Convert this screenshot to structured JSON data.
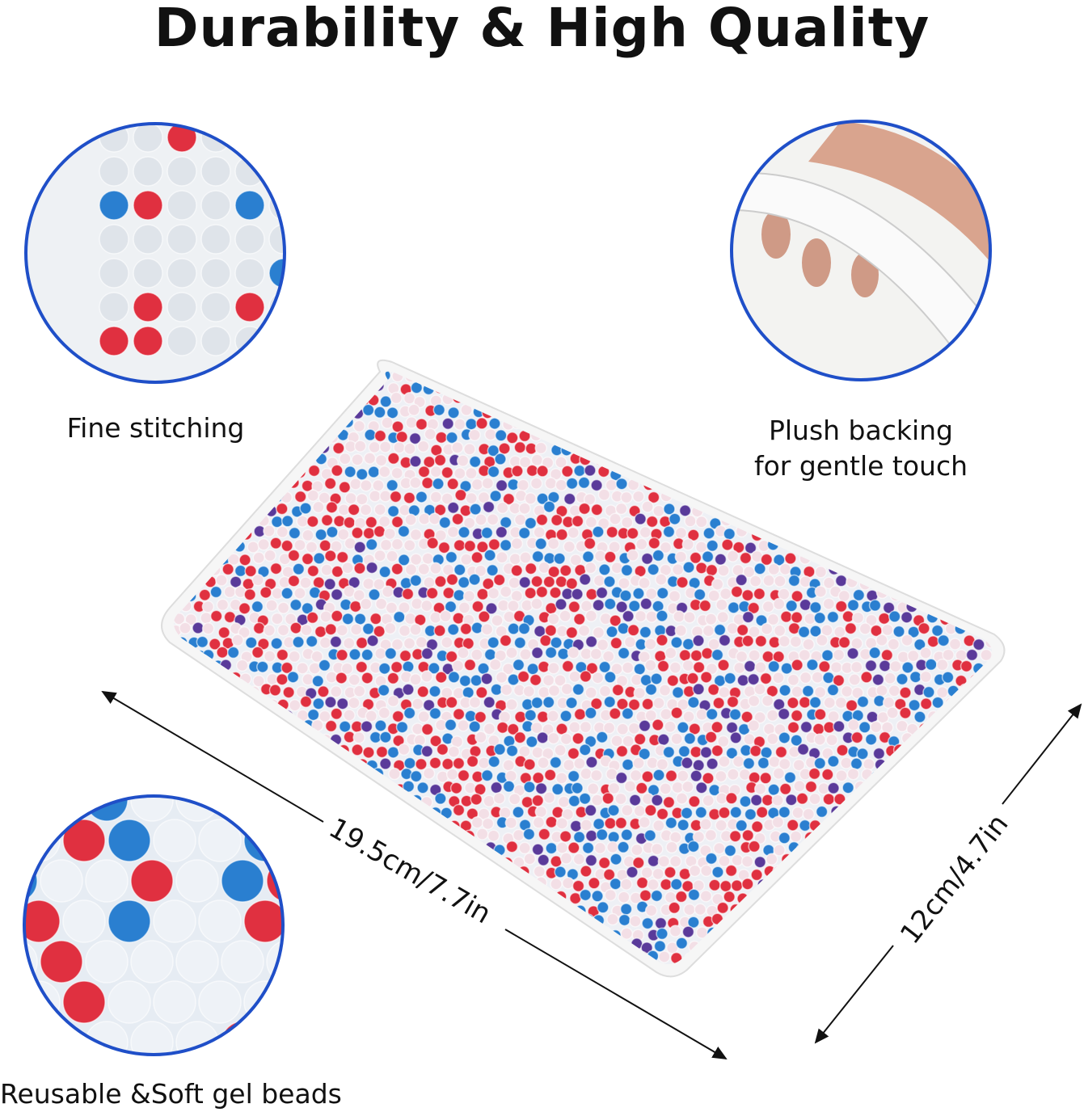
{
  "title": "Durability & High Quality",
  "features": [
    {
      "label": "Fine stitching",
      "icon": "stitching-closeup-image"
    },
    {
      "label_line1": "Plush backing",
      "label_line2": "for gentle touch",
      "icon": "plush-backing-image"
    },
    {
      "label": "Reusable &Soft gel beads",
      "icon": "gel-beads-closeup-image"
    }
  ],
  "dimensions": {
    "length": "19.5cm/7.7in",
    "width": "12cm/4.7in"
  },
  "colors": {
    "circle_border": "#1f4fc8",
    "bead_red": "#e03040",
    "bead_blue": "#2a7fd0",
    "bead_purple": "#5a3a9a"
  }
}
